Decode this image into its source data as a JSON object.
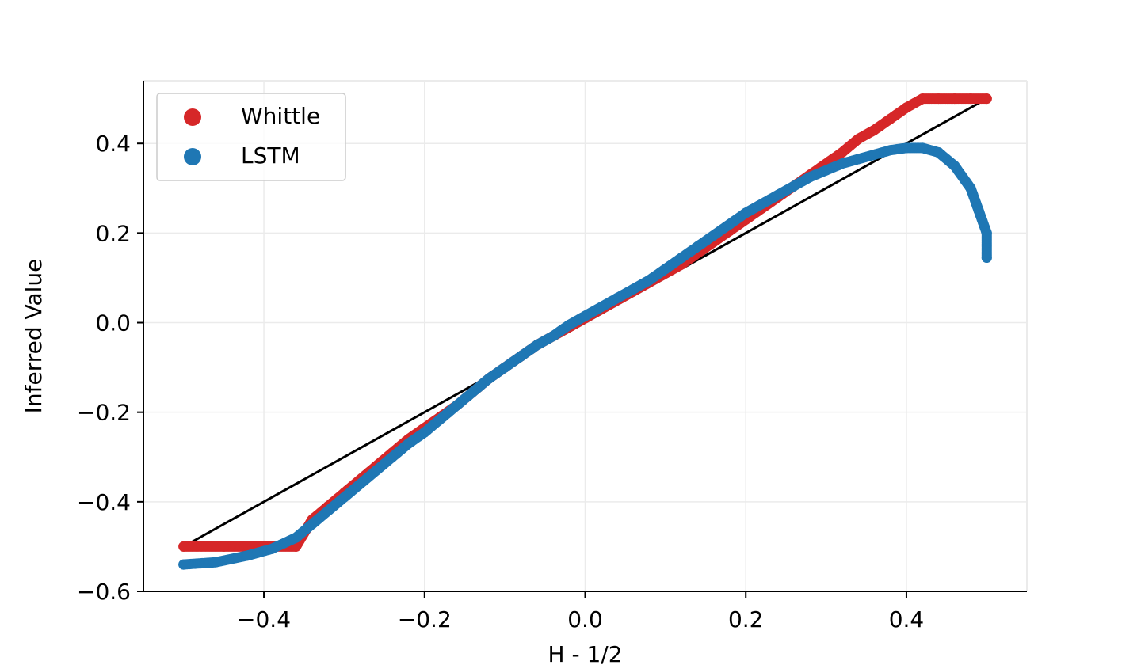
{
  "chart_data": {
    "type": "scatter",
    "title": "",
    "xlabel": "H - 1/2",
    "ylabel": "Inferred Value",
    "xlim": [
      -0.55,
      0.55
    ],
    "ylim": [
      -0.6,
      0.54
    ],
    "x_ticks": [
      -0.4,
      -0.2,
      0.0,
      0.2,
      0.4
    ],
    "y_ticks": [
      -0.6,
      -0.4,
      -0.2,
      0.0,
      0.2,
      0.4
    ],
    "x_tick_labels": [
      "−0.4",
      "−0.2",
      "0.0",
      "0.2",
      "0.4"
    ],
    "y_tick_labels": [
      "−0.6",
      "−0.4",
      "−0.2",
      "0.0",
      "0.2",
      "0.4"
    ],
    "grid": true,
    "legend_position": "top-left",
    "reference_line": {
      "x": [
        -0.5,
        0.5
      ],
      "y": [
        -0.5,
        0.5
      ],
      "color": "#000000"
    },
    "series": [
      {
        "name": "Whittle",
        "color": "#d62728",
        "x": [
          -0.5,
          -0.45,
          -0.4,
          -0.36,
          -0.35,
          -0.34,
          -0.32,
          -0.3,
          -0.28,
          -0.26,
          -0.24,
          -0.22,
          -0.2,
          -0.18,
          -0.16,
          -0.14,
          -0.12,
          -0.1,
          -0.08,
          -0.06,
          -0.04,
          -0.02,
          0.0,
          0.02,
          0.04,
          0.06,
          0.08,
          0.1,
          0.12,
          0.14,
          0.16,
          0.18,
          0.2,
          0.22,
          0.24,
          0.26,
          0.28,
          0.3,
          0.32,
          0.34,
          0.36,
          0.38,
          0.4,
          0.42,
          0.44,
          0.46,
          0.48,
          0.5
        ],
        "y": [
          -0.5,
          -0.5,
          -0.5,
          -0.5,
          -0.47,
          -0.44,
          -0.41,
          -0.38,
          -0.35,
          -0.32,
          -0.29,
          -0.26,
          -0.235,
          -0.21,
          -0.185,
          -0.155,
          -0.125,
          -0.1,
          -0.075,
          -0.05,
          -0.03,
          -0.01,
          0.01,
          0.03,
          0.05,
          0.07,
          0.09,
          0.11,
          0.13,
          0.155,
          0.18,
          0.205,
          0.23,
          0.255,
          0.28,
          0.305,
          0.33,
          0.355,
          0.38,
          0.41,
          0.43,
          0.455,
          0.48,
          0.5,
          0.5,
          0.5,
          0.5,
          0.5
        ]
      },
      {
        "name": "LSTM",
        "color": "#1f77b4",
        "x": [
          -0.5,
          -0.46,
          -0.42,
          -0.39,
          -0.36,
          -0.34,
          -0.32,
          -0.3,
          -0.28,
          -0.26,
          -0.24,
          -0.22,
          -0.2,
          -0.18,
          -0.16,
          -0.14,
          -0.12,
          -0.1,
          -0.08,
          -0.06,
          -0.04,
          -0.02,
          0.0,
          0.02,
          0.04,
          0.06,
          0.08,
          0.1,
          0.12,
          0.14,
          0.16,
          0.18,
          0.2,
          0.22,
          0.24,
          0.26,
          0.28,
          0.3,
          0.32,
          0.34,
          0.36,
          0.38,
          0.4,
          0.42,
          0.44,
          0.46,
          0.48,
          0.49,
          0.5,
          0.5
        ],
        "y": [
          -0.54,
          -0.535,
          -0.52,
          -0.505,
          -0.48,
          -0.45,
          -0.42,
          -0.39,
          -0.36,
          -0.33,
          -0.3,
          -0.27,
          -0.245,
          -0.215,
          -0.185,
          -0.155,
          -0.125,
          -0.1,
          -0.075,
          -0.05,
          -0.03,
          -0.005,
          0.015,
          0.035,
          0.055,
          0.075,
          0.095,
          0.12,
          0.145,
          0.17,
          0.195,
          0.22,
          0.245,
          0.265,
          0.285,
          0.305,
          0.325,
          0.34,
          0.355,
          0.365,
          0.375,
          0.385,
          0.39,
          0.39,
          0.38,
          0.35,
          0.3,
          0.25,
          0.2,
          0.145
        ]
      }
    ]
  }
}
